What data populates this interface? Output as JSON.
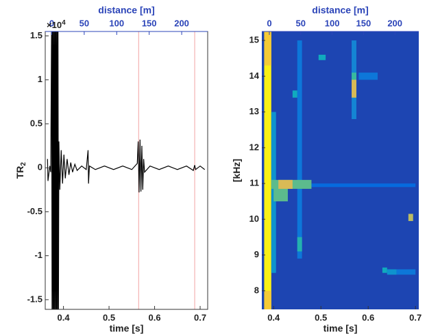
{
  "chart_data": [
    {
      "type": "line",
      "ylabel": "TR",
      "ylabel_sub": "2",
      "xlabel": "time [s]",
      "x2label": "distance [m]",
      "y_multiplier": "×10",
      "y_multiplier_power": "4",
      "color": "#000000",
      "xlim": [
        0.36,
        0.7165
      ],
      "xticks": [
        0.4,
        0.5,
        0.6,
        0.7
      ],
      "x2lim": [
        -10,
        240
      ],
      "x2ticks": [
        0,
        50,
        100,
        150,
        200
      ],
      "ylim": [
        -1.61,
        1.55
      ],
      "yticks": [
        -1.5,
        -1,
        -0.5,
        0,
        0.5,
        1,
        1.5
      ],
      "vlines": [
        0.565,
        0.688
      ],
      "vline_color": "#f2a3a3",
      "x": [
        0.365,
        0.366,
        0.37,
        0.372,
        0.374,
        0.375,
        0.376,
        0.377,
        0.378,
        0.379,
        0.38,
        0.381,
        0.382,
        0.383,
        0.384,
        0.385,
        0.386,
        0.387,
        0.388,
        0.389,
        0.39,
        0.392,
        0.395,
        0.398,
        0.401,
        0.404,
        0.408,
        0.412,
        0.416,
        0.42,
        0.425,
        0.43,
        0.44,
        0.45,
        0.454,
        0.455,
        0.457,
        0.47,
        0.49,
        0.51,
        0.53,
        0.55,
        0.562,
        0.564,
        0.566,
        0.568,
        0.57,
        0.572,
        0.574,
        0.576,
        0.578,
        0.59,
        0.61,
        0.63,
        0.65,
        0.67,
        0.685,
        0.688,
        0.69,
        0.7,
        0.71
      ],
      "values": [
        0.1,
        -0.15,
        0.02,
        -0.05,
        1.7,
        -1.7,
        1.7,
        -1.7,
        1.7,
        -1.7,
        1.7,
        -1.7,
        1.7,
        -1.7,
        1.7,
        -1.7,
        1.7,
        -1.7,
        1.7,
        -1.7,
        0.3,
        -0.25,
        0.2,
        -0.18,
        0.15,
        -0.12,
        0.1,
        -0.08,
        0.06,
        -0.05,
        0.04,
        -0.03,
        0.02,
        -0.02,
        0.2,
        -0.18,
        0.02,
        -0.02,
        0.02,
        -0.02,
        0.02,
        -0.02,
        0.05,
        0.3,
        -0.28,
        0.32,
        -0.27,
        0.25,
        -0.25,
        0.1,
        -0.05,
        0.02,
        -0.02,
        0.02,
        -0.02,
        0.02,
        -0.03,
        0.03,
        -0.02,
        0.02,
        -0.02
      ]
    },
    {
      "type": "heatmap",
      "ylabel": "[kHz]",
      "xlabel": "time [s]",
      "x2label": "distance [m]",
      "colormap": "parula",
      "clim": [
        0,
        1
      ],
      "background": 0.06,
      "xlim": [
        0.375,
        0.707
      ],
      "xticks": [
        0.4,
        0.5,
        0.6,
        0.7
      ],
      "x2lim": [
        -12,
        238
      ],
      "x2ticks": [
        0,
        50,
        100,
        150,
        200
      ],
      "ylim": [
        7.48,
        15.25
      ],
      "yticks": [
        8,
        9,
        10,
        11,
        12,
        13,
        14,
        15
      ],
      "cells": [
        {
          "t": [
            0.38,
            0.395
          ],
          "f": [
            7.48,
            15.25
          ],
          "value": 0.97
        },
        {
          "t": [
            0.38,
            0.395
          ],
          "f": [
            14.3,
            15.25
          ],
          "value": 0.85
        },
        {
          "t": [
            0.38,
            0.395
          ],
          "f": [
            7.48,
            8.0
          ],
          "value": 0.85
        },
        {
          "t": [
            0.395,
            0.405
          ],
          "f": [
            8.5,
            13.0
          ],
          "value": 0.3
        },
        {
          "t": [
            0.45,
            0.46
          ],
          "f": [
            8.9,
            15.0
          ],
          "value": 0.2
        },
        {
          "t": [
            0.45,
            0.46
          ],
          "f": [
            9.1,
            9.5
          ],
          "value": 0.45
        },
        {
          "t": [
            0.44,
            0.45
          ],
          "f": [
            13.4,
            13.6
          ],
          "value": 0.4
        },
        {
          "t": [
            0.48,
            0.7
          ],
          "f": [
            10.9,
            11.0
          ],
          "value": 0.15
        },
        {
          "t": [
            0.395,
            0.48
          ],
          "f": [
            10.85,
            11.1
          ],
          "value": 0.55
        },
        {
          "t": [
            0.4,
            0.43
          ],
          "f": [
            10.5,
            11.0
          ],
          "value": 0.55
        },
        {
          "t": [
            0.41,
            0.44
          ],
          "f": [
            10.85,
            11.1
          ],
          "value": 0.75
        },
        {
          "t": [
            0.495,
            0.51
          ],
          "f": [
            14.45,
            14.6
          ],
          "value": 0.4
        },
        {
          "t": [
            0.565,
            0.575
          ],
          "f": [
            12.8,
            15.0
          ],
          "value": 0.25
        },
        {
          "t": [
            0.565,
            0.575
          ],
          "f": [
            13.9,
            14.1
          ],
          "value": 0.5
        },
        {
          "t": [
            0.565,
            0.575
          ],
          "f": [
            13.4,
            13.9
          ],
          "value": 0.75
        },
        {
          "t": [
            0.58,
            0.62
          ],
          "f": [
            13.9,
            14.1
          ],
          "value": 0.2
        },
        {
          "t": [
            0.63,
            0.64
          ],
          "f": [
            8.5,
            8.65
          ],
          "value": 0.4
        },
        {
          "t": [
            0.64,
            0.66
          ],
          "f": [
            8.45,
            8.6
          ],
          "value": 0.3
        },
        {
          "t": [
            0.66,
            0.7
          ],
          "f": [
            8.45,
            8.6
          ],
          "value": 0.2
        },
        {
          "t": [
            0.685,
            0.695
          ],
          "f": [
            9.95,
            10.15
          ],
          "value": 0.7
        }
      ]
    }
  ]
}
